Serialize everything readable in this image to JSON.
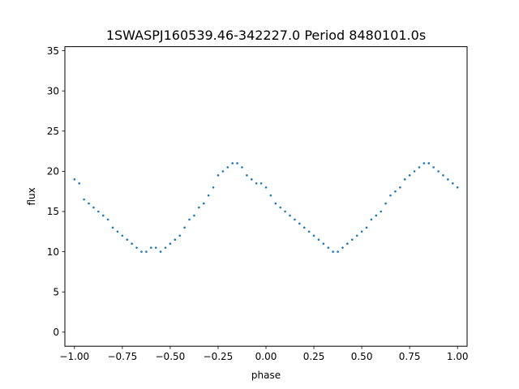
{
  "chart_data": {
    "type": "scatter",
    "title": "1SWASPJ160539.46-342227.0 Period 8480101.0s",
    "xlabel": "phase",
    "ylabel": "flux",
    "xlim": [
      -1.05,
      1.05
    ],
    "ylim": [
      -1.75,
      35.5
    ],
    "xticks": [
      -1.0,
      -0.75,
      -0.5,
      -0.25,
      0.0,
      0.25,
      0.5,
      0.75,
      1.0
    ],
    "xtick_labels": [
      "−1.00",
      "−0.75",
      "−0.50",
      "−0.25",
      "0.00",
      "0.25",
      "0.50",
      "0.75",
      "1.00"
    ],
    "yticks": [
      0,
      5,
      10,
      15,
      20,
      25,
      30,
      35
    ],
    "ytick_labels": [
      "0",
      "5",
      "10",
      "15",
      "20",
      "25",
      "30",
      "35"
    ],
    "grid": false,
    "marker_color": "#1f77b4",
    "marker_size": "tiny",
    "x": [
      -1.0,
      -0.975,
      -0.95,
      -0.925,
      -0.9,
      -0.875,
      -0.85,
      -0.825,
      -0.8,
      -0.775,
      -0.75,
      -0.725,
      -0.7,
      -0.675,
      -0.65,
      -0.625,
      -0.6,
      -0.575,
      -0.55,
      -0.525,
      -0.5,
      -0.475,
      -0.45,
      -0.425,
      -0.4,
      -0.375,
      -0.35,
      -0.325,
      -0.3,
      -0.275,
      -0.25,
      -0.225,
      -0.2,
      -0.175,
      -0.15,
      -0.125,
      -0.1,
      -0.075,
      -0.05,
      -0.025,
      0.0,
      0.025,
      0.05,
      0.075,
      0.1,
      0.125,
      0.15,
      0.175,
      0.2,
      0.225,
      0.25,
      0.275,
      0.3,
      0.325,
      0.35,
      0.375,
      0.4,
      0.425,
      0.45,
      0.475,
      0.5,
      0.525,
      0.55,
      0.575,
      0.6,
      0.625,
      0.65,
      0.675,
      0.7,
      0.725,
      0.75,
      0.775,
      0.8,
      0.825,
      0.85,
      0.875,
      0.9,
      0.925,
      0.95,
      0.975,
      1.0
    ],
    "y": [
      19,
      18.5,
      16.5,
      16,
      15.5,
      15,
      14.5,
      14,
      13,
      12.5,
      12,
      11.5,
      11,
      10.5,
      10,
      10,
      10.5,
      10.5,
      10,
      10.5,
      11,
      11.5,
      12,
      13,
      14,
      14.5,
      15.5,
      16,
      17,
      18,
      19.5,
      20,
      20.5,
      21,
      21,
      20.5,
      19.5,
      19,
      18.5,
      18.5,
      18,
      17,
      16,
      15.5,
      15,
      14.5,
      14,
      13.5,
      13,
      12.5,
      12,
      11.5,
      11,
      10.5,
      10,
      10,
      10.5,
      11,
      11.5,
      12,
      12.5,
      13,
      14,
      14.5,
      15,
      16,
      17,
      17.5,
      18,
      19,
      19.5,
      20,
      20.5,
      21,
      21,
      20.5,
      20,
      19.5,
      19,
      18.5,
      18
    ]
  }
}
